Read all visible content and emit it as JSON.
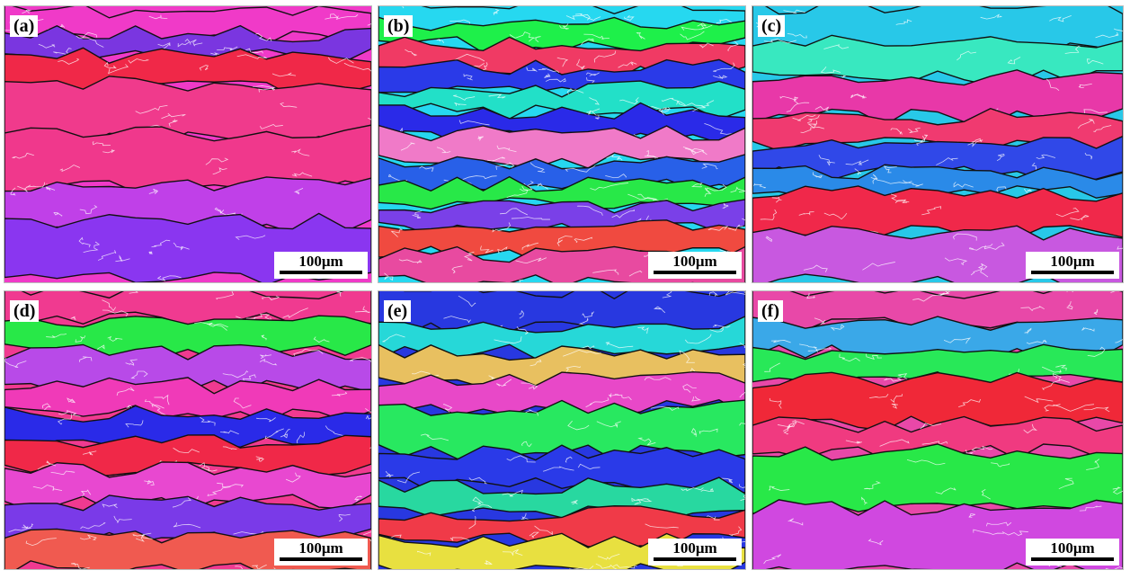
{
  "figure": {
    "panels": [
      {
        "id": "a",
        "label": "(a)",
        "scale_label": "100μm",
        "bands": [
          {
            "y": 0.02,
            "h": 0.1,
            "color": "#f03ac8"
          },
          {
            "y": 0.1,
            "h": 0.08,
            "color": "#7a36e0"
          },
          {
            "y": 0.18,
            "h": 0.12,
            "color": "#f02848"
          },
          {
            "y": 0.28,
            "h": 0.2,
            "color": "#f03a8c"
          },
          {
            "y": 0.46,
            "h": 0.2,
            "color": "#f0388c"
          },
          {
            "y": 0.64,
            "h": 0.16,
            "color": "#c040e8"
          },
          {
            "y": 0.78,
            "h": 0.2,
            "color": "#8a36f0"
          }
        ]
      },
      {
        "id": "b",
        "label": "(b)",
        "scale_label": "100μm",
        "bands": [
          {
            "y": 0.0,
            "h": 0.1,
            "color": "#26d8f0"
          },
          {
            "y": 0.06,
            "h": 0.08,
            "color": "#1ef04a"
          },
          {
            "y": 0.14,
            "h": 0.1,
            "color": "#f03a64"
          },
          {
            "y": 0.22,
            "h": 0.09,
            "color": "#2a3ae8"
          },
          {
            "y": 0.3,
            "h": 0.08,
            "color": "#22e0c8"
          },
          {
            "y": 0.38,
            "h": 0.1,
            "color": "#2a2ae8"
          },
          {
            "y": 0.46,
            "h": 0.1,
            "color": "#f07ac8"
          },
          {
            "y": 0.56,
            "h": 0.09,
            "color": "#2860e8"
          },
          {
            "y": 0.64,
            "h": 0.08,
            "color": "#28e848"
          },
          {
            "y": 0.72,
            "h": 0.09,
            "color": "#7a40e8"
          },
          {
            "y": 0.8,
            "h": 0.1,
            "color": "#f04a40"
          },
          {
            "y": 0.9,
            "h": 0.1,
            "color": "#e84aa0"
          }
        ]
      },
      {
        "id": "c",
        "label": "(c)",
        "scale_label": "100μm",
        "bands": [
          {
            "y": 0.0,
            "h": 0.16,
            "color": "#28c8e8"
          },
          {
            "y": 0.12,
            "h": 0.14,
            "color": "#38e8c0"
          },
          {
            "y": 0.26,
            "h": 0.14,
            "color": "#e838a8"
          },
          {
            "y": 0.4,
            "h": 0.1,
            "color": "#f03a70"
          },
          {
            "y": 0.5,
            "h": 0.1,
            "color": "#3048e8"
          },
          {
            "y": 0.6,
            "h": 0.08,
            "color": "#2a8ae8"
          },
          {
            "y": 0.68,
            "h": 0.14,
            "color": "#f0284a"
          },
          {
            "y": 0.82,
            "h": 0.18,
            "color": "#c858e0"
          }
        ]
      },
      {
        "id": "d",
        "label": "(d)",
        "scale_label": "100μm",
        "bands": [
          {
            "y": 0.0,
            "h": 0.1,
            "color": "#f03a90"
          },
          {
            "y": 0.1,
            "h": 0.12,
            "color": "#28e848"
          },
          {
            "y": 0.22,
            "h": 0.12,
            "color": "#b84ae8"
          },
          {
            "y": 0.34,
            "h": 0.1,
            "color": "#f03ab8"
          },
          {
            "y": 0.44,
            "h": 0.1,
            "color": "#2a2ae8"
          },
          {
            "y": 0.54,
            "h": 0.1,
            "color": "#f02848"
          },
          {
            "y": 0.64,
            "h": 0.12,
            "color": "#e848d0"
          },
          {
            "y": 0.76,
            "h": 0.12,
            "color": "#7a3ae8"
          },
          {
            "y": 0.88,
            "h": 0.12,
            "color": "#f05a50"
          }
        ]
      },
      {
        "id": "e",
        "label": "(e)",
        "scale_label": "100μm",
        "bands": [
          {
            "y": 0.0,
            "h": 0.14,
            "color": "#2838e0"
          },
          {
            "y": 0.12,
            "h": 0.1,
            "color": "#26d8d8"
          },
          {
            "y": 0.22,
            "h": 0.12,
            "color": "#e8c060"
          },
          {
            "y": 0.32,
            "h": 0.1,
            "color": "#e848c8"
          },
          {
            "y": 0.42,
            "h": 0.16,
            "color": "#28e860"
          },
          {
            "y": 0.58,
            "h": 0.12,
            "color": "#2a3ae8"
          },
          {
            "y": 0.7,
            "h": 0.1,
            "color": "#28d8a0"
          },
          {
            "y": 0.8,
            "h": 0.1,
            "color": "#f03a48"
          },
          {
            "y": 0.9,
            "h": 0.1,
            "color": "#e8e040"
          }
        ]
      },
      {
        "id": "f",
        "label": "(f)",
        "scale_label": "100μm",
        "bands": [
          {
            "y": 0.0,
            "h": 0.12,
            "color": "#e848a8"
          },
          {
            "y": 0.12,
            "h": 0.1,
            "color": "#3aa8e8"
          },
          {
            "y": 0.22,
            "h": 0.1,
            "color": "#28e858"
          },
          {
            "y": 0.32,
            "h": 0.16,
            "color": "#f02838"
          },
          {
            "y": 0.48,
            "h": 0.1,
            "color": "#f03a80"
          },
          {
            "y": 0.58,
            "h": 0.2,
            "color": "#28e848"
          },
          {
            "y": 0.78,
            "h": 0.22,
            "color": "#d048e0"
          }
        ]
      }
    ]
  }
}
